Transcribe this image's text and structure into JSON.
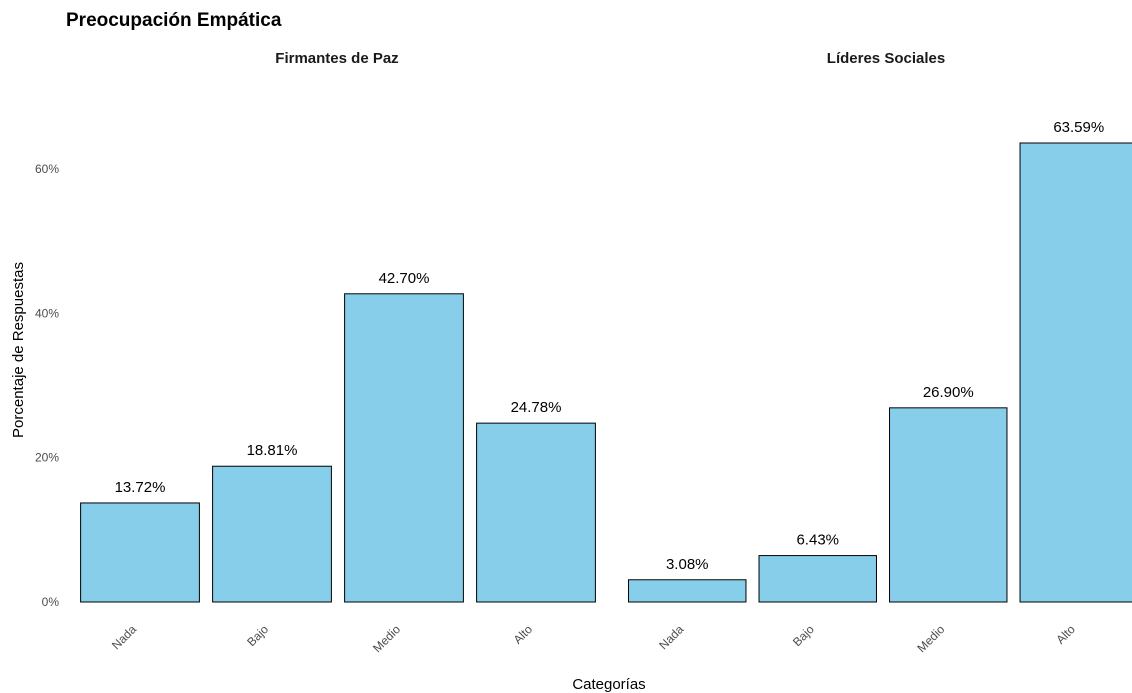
{
  "chart_data": {
    "type": "bar",
    "title": "Preocupación Empática",
    "xlabel": "Categorías",
    "ylabel": "Porcentaje de Respuestas",
    "ylim": [
      0,
      0.6359
    ],
    "y_ticks": [
      "0%",
      "20%",
      "40%",
      "60%"
    ],
    "y_tick_values": [
      0,
      0.2,
      0.4,
      0.6
    ],
    "grid": false,
    "bar_color": "#87CEEB",
    "bar_edge_color": "#000000",
    "categories": [
      "Nada",
      "Bajo",
      "Medio",
      "Alto"
    ],
    "facets": [
      {
        "title": "Firmantes de Paz",
        "categories": [
          "Nada",
          "Bajo",
          "Medio",
          "Alto"
        ],
        "values": [
          0.1372,
          0.1881,
          0.427,
          0.2478
        ],
        "labels": [
          "13.72%",
          "18.81%",
          "42.70%",
          "24.78%"
        ]
      },
      {
        "title": "Líderes Sociales",
        "categories": [
          "Nada",
          "Bajo",
          "Medio",
          "Alto"
        ],
        "values": [
          0.0308,
          0.0643,
          0.269,
          0.6359
        ],
        "labels": [
          "3.08%",
          "6.43%",
          "26.90%",
          "63.59%"
        ]
      }
    ]
  }
}
